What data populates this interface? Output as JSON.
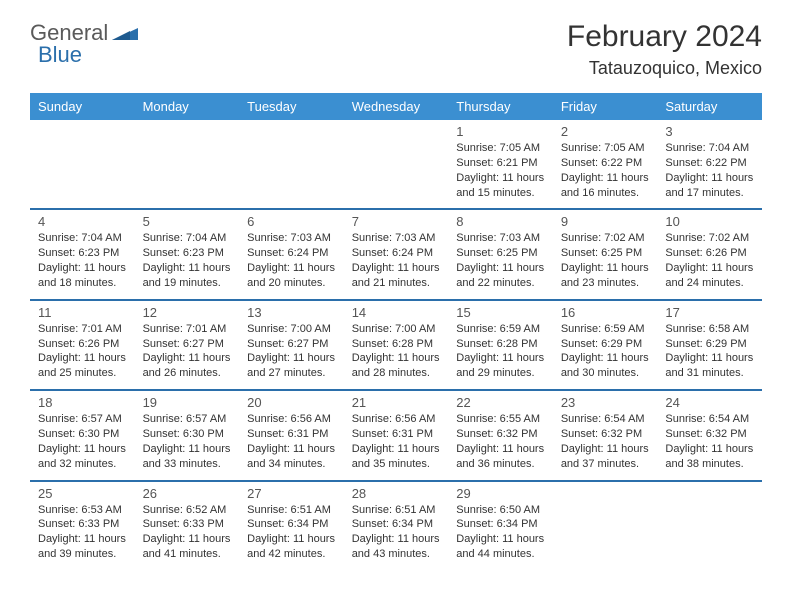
{
  "logo": {
    "general": "General",
    "blue": "Blue"
  },
  "title": "February 2024",
  "location": "Tatauzoquico, Mexico",
  "colors": {
    "headerBg": "#3b8fd1",
    "headerText": "#ffffff",
    "rule": "#2b6fab",
    "text": "#333333"
  },
  "dayHeaders": [
    "Sunday",
    "Monday",
    "Tuesday",
    "Wednesday",
    "Thursday",
    "Friday",
    "Saturday"
  ],
  "weeks": [
    [
      null,
      null,
      null,
      null,
      {
        "n": "1",
        "sunrise": "7:05 AM",
        "sunset": "6:21 PM",
        "dl1": "Daylight: 11 hours",
        "dl2": "and 15 minutes."
      },
      {
        "n": "2",
        "sunrise": "7:05 AM",
        "sunset": "6:22 PM",
        "dl1": "Daylight: 11 hours",
        "dl2": "and 16 minutes."
      },
      {
        "n": "3",
        "sunrise": "7:04 AM",
        "sunset": "6:22 PM",
        "dl1": "Daylight: 11 hours",
        "dl2": "and 17 minutes."
      }
    ],
    [
      {
        "n": "4",
        "sunrise": "7:04 AM",
        "sunset": "6:23 PM",
        "dl1": "Daylight: 11 hours",
        "dl2": "and 18 minutes."
      },
      {
        "n": "5",
        "sunrise": "7:04 AM",
        "sunset": "6:23 PM",
        "dl1": "Daylight: 11 hours",
        "dl2": "and 19 minutes."
      },
      {
        "n": "6",
        "sunrise": "7:03 AM",
        "sunset": "6:24 PM",
        "dl1": "Daylight: 11 hours",
        "dl2": "and 20 minutes."
      },
      {
        "n": "7",
        "sunrise": "7:03 AM",
        "sunset": "6:24 PM",
        "dl1": "Daylight: 11 hours",
        "dl2": "and 21 minutes."
      },
      {
        "n": "8",
        "sunrise": "7:03 AM",
        "sunset": "6:25 PM",
        "dl1": "Daylight: 11 hours",
        "dl2": "and 22 minutes."
      },
      {
        "n": "9",
        "sunrise": "7:02 AM",
        "sunset": "6:25 PM",
        "dl1": "Daylight: 11 hours",
        "dl2": "and 23 minutes."
      },
      {
        "n": "10",
        "sunrise": "7:02 AM",
        "sunset": "6:26 PM",
        "dl1": "Daylight: 11 hours",
        "dl2": "and 24 minutes."
      }
    ],
    [
      {
        "n": "11",
        "sunrise": "7:01 AM",
        "sunset": "6:26 PM",
        "dl1": "Daylight: 11 hours",
        "dl2": "and 25 minutes."
      },
      {
        "n": "12",
        "sunrise": "7:01 AM",
        "sunset": "6:27 PM",
        "dl1": "Daylight: 11 hours",
        "dl2": "and 26 minutes."
      },
      {
        "n": "13",
        "sunrise": "7:00 AM",
        "sunset": "6:27 PM",
        "dl1": "Daylight: 11 hours",
        "dl2": "and 27 minutes."
      },
      {
        "n": "14",
        "sunrise": "7:00 AM",
        "sunset": "6:28 PM",
        "dl1": "Daylight: 11 hours",
        "dl2": "and 28 minutes."
      },
      {
        "n": "15",
        "sunrise": "6:59 AM",
        "sunset": "6:28 PM",
        "dl1": "Daylight: 11 hours",
        "dl2": "and 29 minutes."
      },
      {
        "n": "16",
        "sunrise": "6:59 AM",
        "sunset": "6:29 PM",
        "dl1": "Daylight: 11 hours",
        "dl2": "and 30 minutes."
      },
      {
        "n": "17",
        "sunrise": "6:58 AM",
        "sunset": "6:29 PM",
        "dl1": "Daylight: 11 hours",
        "dl2": "and 31 minutes."
      }
    ],
    [
      {
        "n": "18",
        "sunrise": "6:57 AM",
        "sunset": "6:30 PM",
        "dl1": "Daylight: 11 hours",
        "dl2": "and 32 minutes."
      },
      {
        "n": "19",
        "sunrise": "6:57 AM",
        "sunset": "6:30 PM",
        "dl1": "Daylight: 11 hours",
        "dl2": "and 33 minutes."
      },
      {
        "n": "20",
        "sunrise": "6:56 AM",
        "sunset": "6:31 PM",
        "dl1": "Daylight: 11 hours",
        "dl2": "and 34 minutes."
      },
      {
        "n": "21",
        "sunrise": "6:56 AM",
        "sunset": "6:31 PM",
        "dl1": "Daylight: 11 hours",
        "dl2": "and 35 minutes."
      },
      {
        "n": "22",
        "sunrise": "6:55 AM",
        "sunset": "6:32 PM",
        "dl1": "Daylight: 11 hours",
        "dl2": "and 36 minutes."
      },
      {
        "n": "23",
        "sunrise": "6:54 AM",
        "sunset": "6:32 PM",
        "dl1": "Daylight: 11 hours",
        "dl2": "and 37 minutes."
      },
      {
        "n": "24",
        "sunrise": "6:54 AM",
        "sunset": "6:32 PM",
        "dl1": "Daylight: 11 hours",
        "dl2": "and 38 minutes."
      }
    ],
    [
      {
        "n": "25",
        "sunrise": "6:53 AM",
        "sunset": "6:33 PM",
        "dl1": "Daylight: 11 hours",
        "dl2": "and 39 minutes."
      },
      {
        "n": "26",
        "sunrise": "6:52 AM",
        "sunset": "6:33 PM",
        "dl1": "Daylight: 11 hours",
        "dl2": "and 41 minutes."
      },
      {
        "n": "27",
        "sunrise": "6:51 AM",
        "sunset": "6:34 PM",
        "dl1": "Daylight: 11 hours",
        "dl2": "and 42 minutes."
      },
      {
        "n": "28",
        "sunrise": "6:51 AM",
        "sunset": "6:34 PM",
        "dl1": "Daylight: 11 hours",
        "dl2": "and 43 minutes."
      },
      {
        "n": "29",
        "sunrise": "6:50 AM",
        "sunset": "6:34 PM",
        "dl1": "Daylight: 11 hours",
        "dl2": "and 44 minutes."
      },
      null,
      null
    ]
  ]
}
